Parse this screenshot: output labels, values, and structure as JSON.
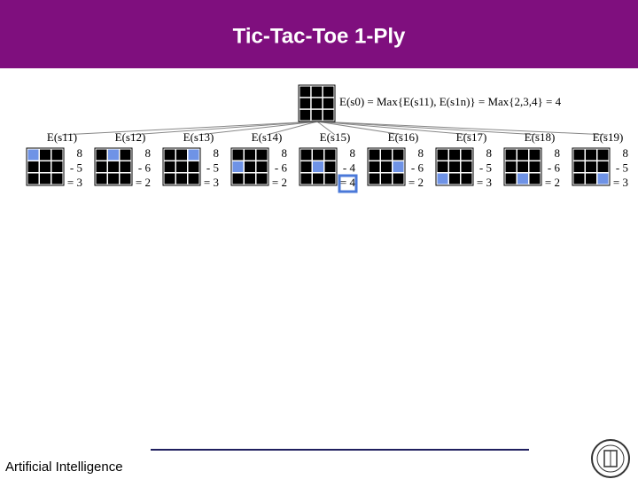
{
  "header": {
    "title": "Tic-Tac-Toe 1-Ply"
  },
  "root": {
    "label": "E(s0) = Max{E(s11), E(s1n)} = Max{2,3,4} = 4"
  },
  "nodes": [
    {
      "label": "E(s11)",
      "lines": [
        "8",
        "- 5",
        "= 3"
      ]
    },
    {
      "label": "E(s12)",
      "lines": [
        "8",
        "- 6",
        "= 2"
      ]
    },
    {
      "label": "E(s13)",
      "lines": [
        "8",
        "- 5",
        "= 3"
      ]
    },
    {
      "label": "E(s14)",
      "lines": [
        "8",
        "- 6",
        "= 2"
      ]
    },
    {
      "label": "E(s15)",
      "lines": [
        "8",
        "- 4",
        "= 4"
      ]
    },
    {
      "label": "E(s16)",
      "lines": [
        "8",
        "- 6",
        "= 2"
      ]
    },
    {
      "label": "E(s17)",
      "lines": [
        "8",
        "- 5",
        "= 3"
      ]
    },
    {
      "label": "E(s18)",
      "lines": [
        "8",
        "- 6",
        "= 2"
      ]
    },
    {
      "label": "E(s19)",
      "lines": [
        "8",
        "- 5",
        "= 3"
      ]
    }
  ],
  "footer": {
    "text": "Artificial Intelligence"
  }
}
